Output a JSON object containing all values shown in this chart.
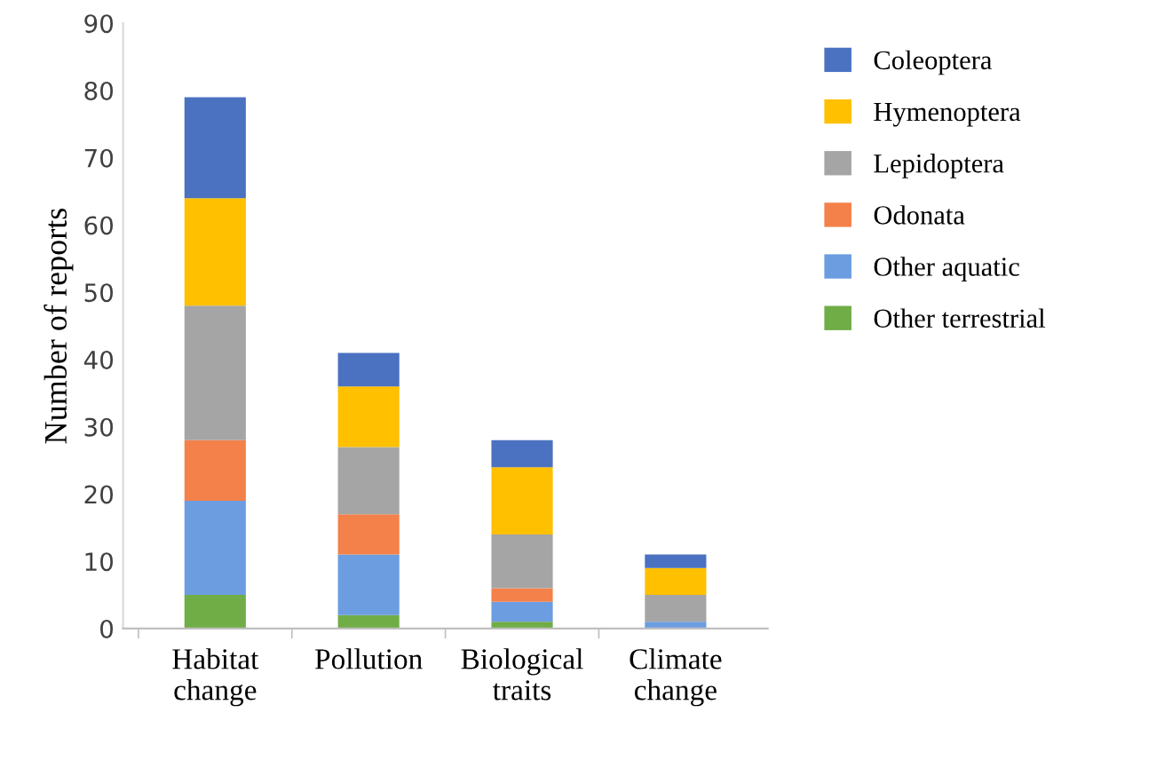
{
  "chart_data": {
    "type": "bar",
    "stacked": true,
    "ylabel": "Number of reports",
    "categories": [
      "Habitat change",
      "Pollution",
      "Biological traits",
      "Climate change"
    ],
    "series": [
      {
        "name": "Other terrestrial",
        "color": "#70ad47",
        "values": [
          5,
          2,
          1,
          0
        ]
      },
      {
        "name": "Other aquatic",
        "color": "#6b9de0",
        "values": [
          14,
          9,
          3,
          1
        ]
      },
      {
        "name": "Odonata",
        "color": "#f4804a",
        "values": [
          9,
          6,
          2,
          0
        ]
      },
      {
        "name": "Lepidoptera",
        "color": "#a5a5a5",
        "values": [
          20,
          10,
          8,
          4
        ]
      },
      {
        "name": "Hymenoptera",
        "color": "#ffc000",
        "values": [
          16,
          9,
          10,
          4
        ]
      },
      {
        "name": "Coleoptera",
        "color": "#4a72c0",
        "values": [
          15,
          5,
          4,
          2
        ]
      }
    ],
    "ylim": [
      0,
      90
    ],
    "yticks": [
      0,
      10,
      20,
      30,
      40,
      50,
      60,
      70,
      80,
      90
    ],
    "grid": false,
    "legend": "right"
  }
}
